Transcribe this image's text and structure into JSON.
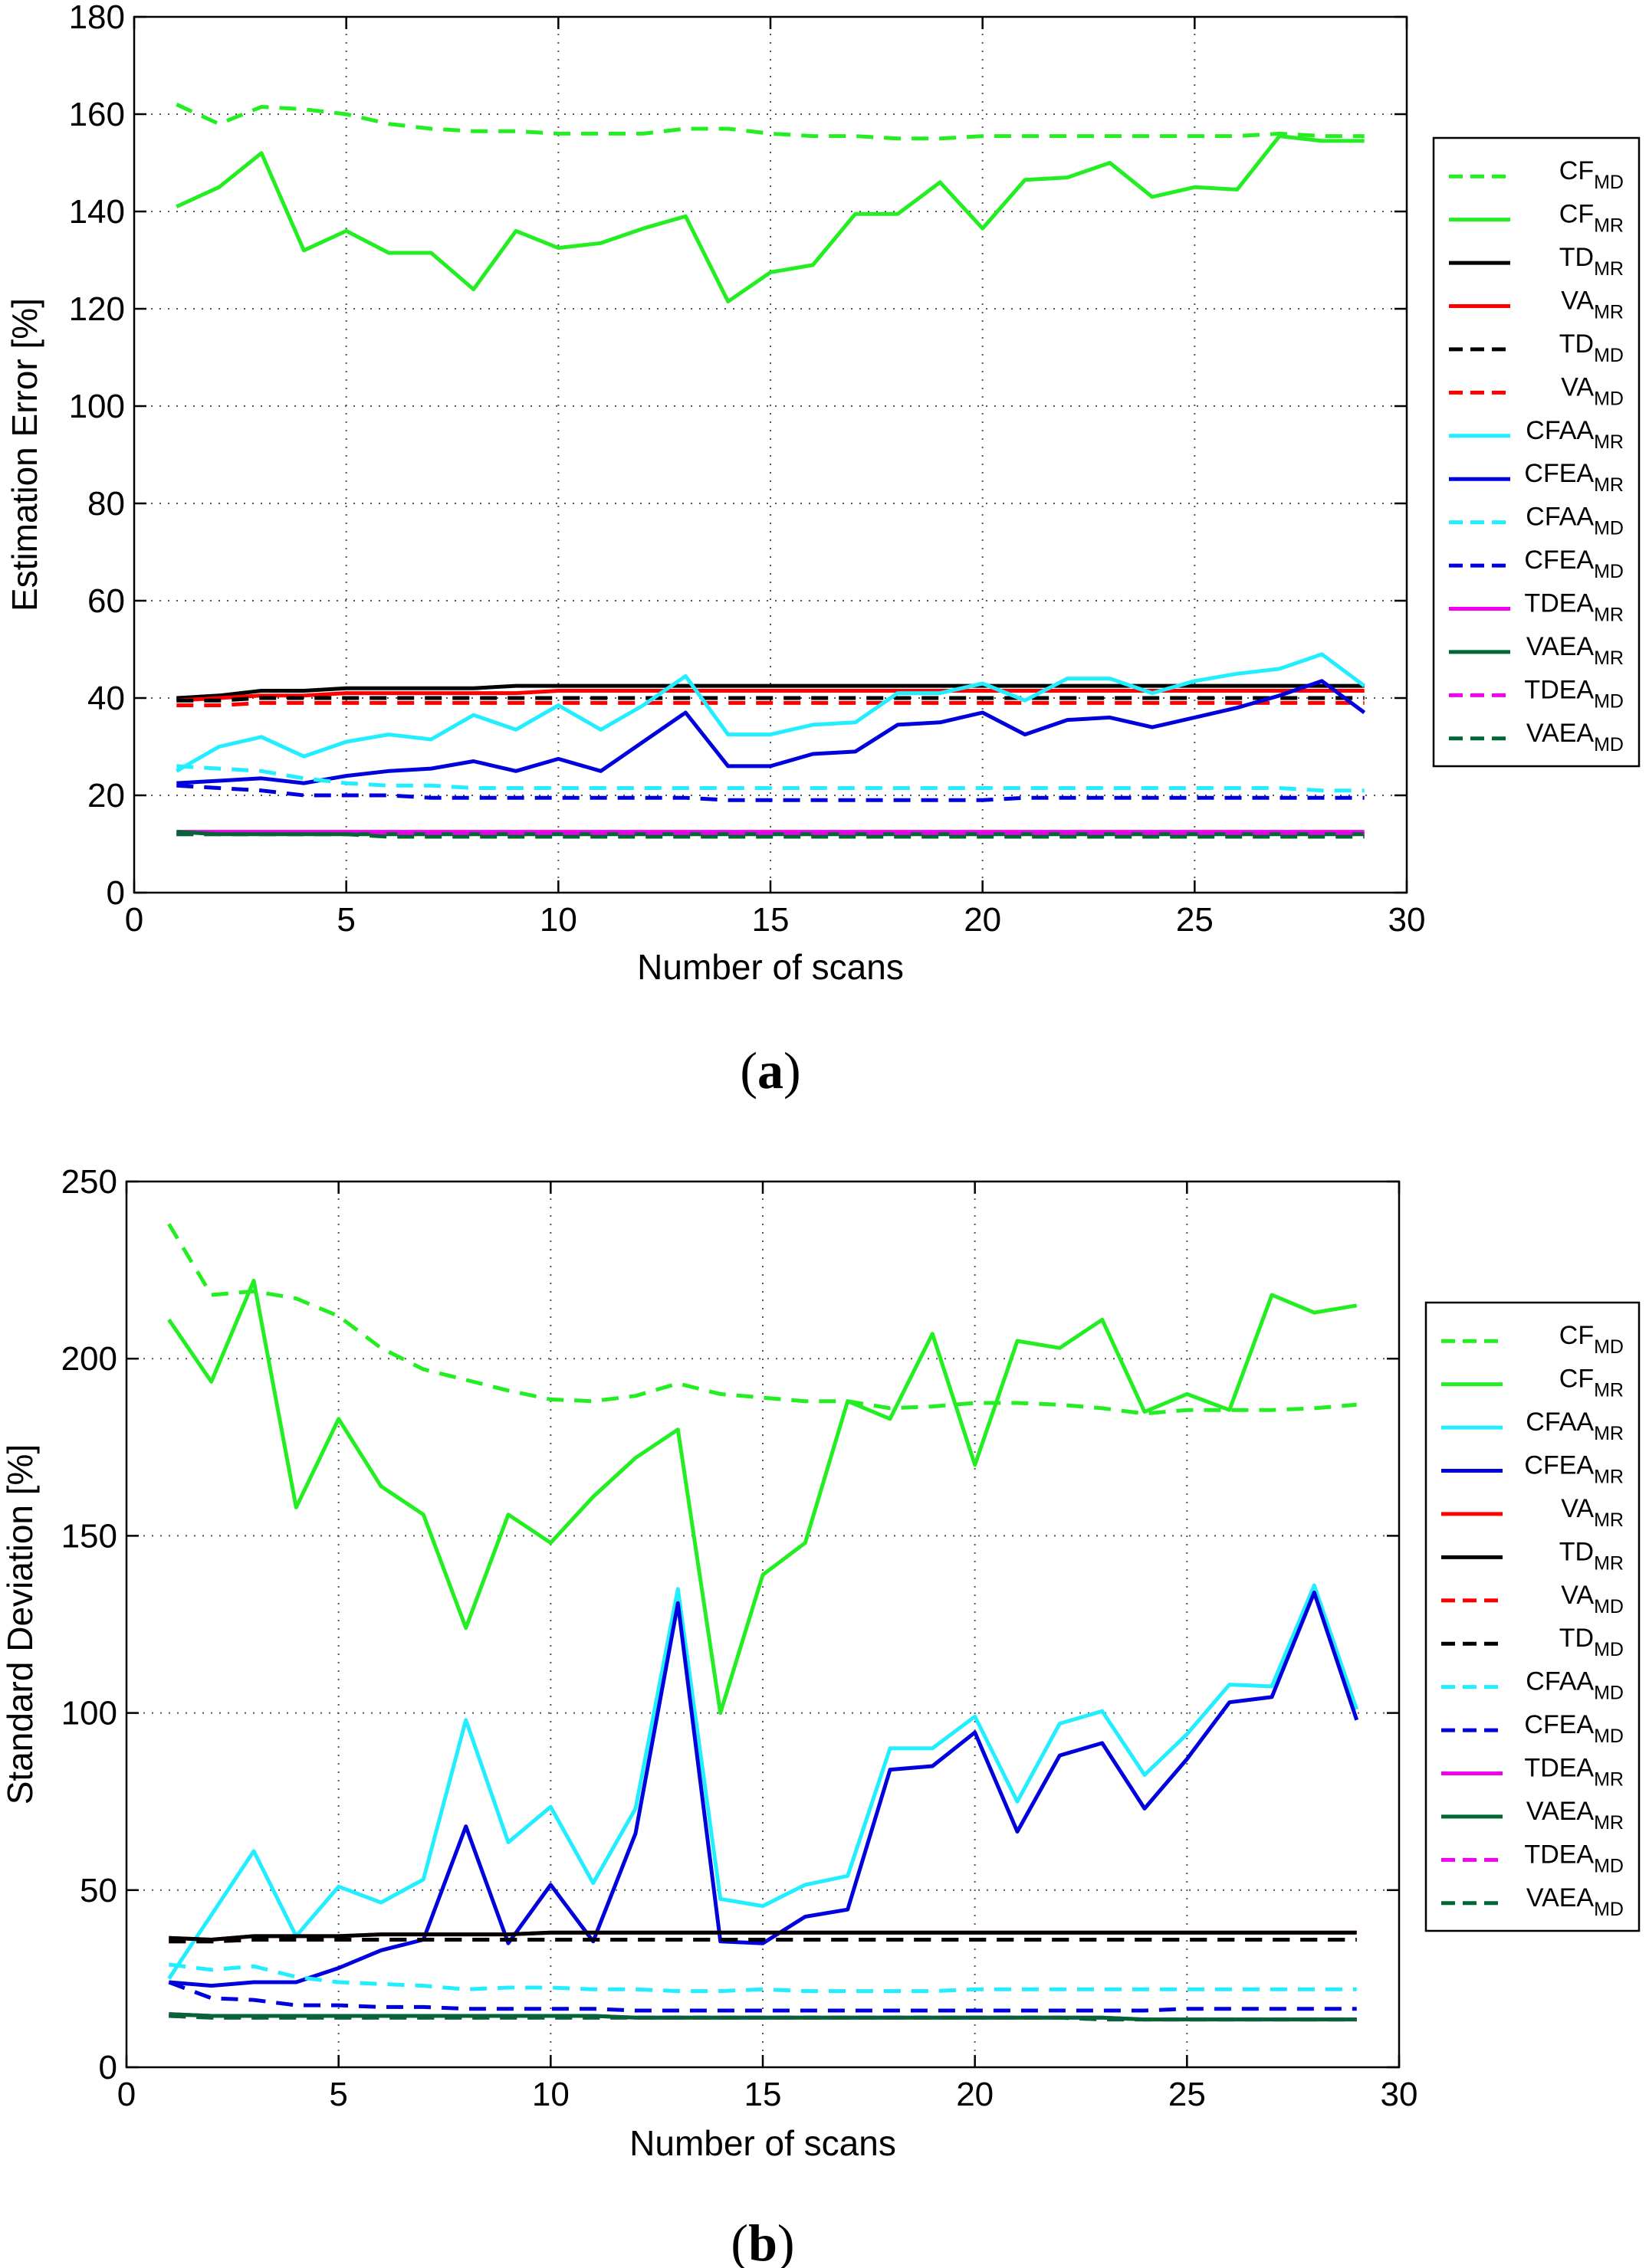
{
  "chart_data": [
    {
      "type": "line",
      "panel_label": "a",
      "xlabel": "Number of scans",
      "ylabel": "Estimation Error [%]",
      "xlim": [
        0,
        30
      ],
      "ylim": [
        0,
        180
      ],
      "xticks": [
        0,
        5,
        10,
        15,
        20,
        25,
        30
      ],
      "yticks": [
        0,
        20,
        40,
        60,
        80,
        100,
        120,
        140,
        160,
        180
      ],
      "grid": true,
      "legend_position": "right",
      "x": [
        1,
        2,
        3,
        4,
        5,
        6,
        7,
        8,
        9,
        10,
        11,
        12,
        13,
        14,
        15,
        16,
        17,
        18,
        19,
        20,
        21,
        22,
        23,
        24,
        25,
        26,
        27,
        28,
        29
      ],
      "series": [
        {
          "name": "CF",
          "sub": "MD",
          "color": "#22ee22",
          "dash": true,
          "values": [
            162,
            158,
            161.5,
            161,
            160,
            158,
            157,
            156.5,
            156.5,
            156,
            156,
            156,
            157,
            157,
            156,
            155.5,
            155.5,
            155,
            155,
            155.5,
            155.5,
            155.5,
            155.5,
            155.5,
            155.5,
            155.5,
            156,
            155.5,
            155.5
          ]
        },
        {
          "name": "CF",
          "sub": "MR",
          "color": "#22ee22",
          "dash": false,
          "values": [
            141,
            145,
            152,
            132,
            136,
            131.5,
            131.5,
            124,
            136,
            132.5,
            133.5,
            136.5,
            139,
            121.5,
            127.5,
            129,
            139.5,
            139.5,
            146,
            136.5,
            146.5,
            147,
            150,
            143,
            145,
            144.5,
            155.5,
            154.5,
            154.5
          ]
        },
        {
          "name": "TD",
          "sub": "MR",
          "color": "#000000",
          "dash": false,
          "values": [
            40,
            40.5,
            41.5,
            41.5,
            42,
            42,
            42,
            42,
            42.5,
            42.5,
            42.5,
            42.5,
            42.5,
            42.5,
            42.5,
            42.5,
            42.5,
            42.5,
            42.5,
            42.5,
            42.5,
            42.5,
            42.5,
            42.5,
            42.5,
            42.5,
            42.5,
            42.5,
            42.5
          ]
        },
        {
          "name": "VA",
          "sub": "MR",
          "color": "#ff0000",
          "dash": false,
          "values": [
            39.5,
            40,
            40.5,
            40.5,
            41,
            41,
            41,
            41,
            41,
            41.5,
            41.5,
            41.5,
            41.5,
            41.5,
            41.5,
            41.5,
            41.5,
            41.5,
            41.5,
            41.5,
            41.5,
            41.5,
            41.5,
            41.5,
            41.5,
            41.5,
            41.5,
            41.5,
            41.5
          ]
        },
        {
          "name": "TD",
          "sub": "MD",
          "color": "#000000",
          "dash": true,
          "values": [
            39.5,
            39.5,
            40,
            40,
            40,
            40,
            40,
            40,
            40,
            40,
            40,
            40,
            40,
            40,
            40,
            40,
            40,
            40,
            40,
            40,
            40,
            40,
            40,
            40,
            40,
            40,
            40,
            40,
            40
          ]
        },
        {
          "name": "VA",
          "sub": "MD",
          "color": "#ff0000",
          "dash": true,
          "values": [
            38.5,
            38.5,
            39,
            39,
            39,
            39,
            39,
            39,
            39,
            39,
            39,
            39,
            39,
            39,
            39,
            39,
            39,
            39,
            39,
            39,
            39,
            39,
            39,
            39,
            39,
            39,
            39,
            39,
            39
          ]
        },
        {
          "name": "CFAA",
          "sub": "MR",
          "color": "#22eeff",
          "dash": false,
          "values": [
            25,
            30,
            32,
            28,
            31,
            32.5,
            31.5,
            36.5,
            33.5,
            38.5,
            33.5,
            38.5,
            44.5,
            32.5,
            32.5,
            34.5,
            35,
            41,
            41,
            43,
            39.5,
            44,
            44,
            41,
            43.5,
            45,
            46,
            49,
            42.5
          ]
        },
        {
          "name": "CFEA",
          "sub": "MR",
          "color": "#0000dd",
          "dash": false,
          "values": [
            22.5,
            23,
            23.5,
            22.5,
            24,
            25,
            25.5,
            27,
            25,
            27.5,
            25,
            31,
            37,
            26,
            26,
            28.5,
            29,
            34.5,
            35,
            37,
            32.5,
            35.5,
            36,
            34,
            36,
            38,
            40.5,
            43.5,
            37
          ]
        },
        {
          "name": "CFAA",
          "sub": "MD",
          "color": "#22eeff",
          "dash": true,
          "values": [
            26,
            25.5,
            25,
            23.5,
            22.5,
            22,
            22,
            21.5,
            21.5,
            21.5,
            21.5,
            21.5,
            21.5,
            21.5,
            21.5,
            21.5,
            21.5,
            21.5,
            21.5,
            21.5,
            21.5,
            21.5,
            21.5,
            21.5,
            21.5,
            21.5,
            21.5,
            21,
            21
          ]
        },
        {
          "name": "CFEA",
          "sub": "MD",
          "color": "#0000dd",
          "dash": true,
          "values": [
            22,
            21.5,
            21,
            20,
            20,
            20,
            19.5,
            19.5,
            19.5,
            19.5,
            19.5,
            19.5,
            19.5,
            19,
            19,
            19,
            19,
            19,
            19,
            19,
            19.5,
            19.5,
            19.5,
            19.5,
            19.5,
            19.5,
            19.5,
            19.5,
            19.5
          ]
        },
        {
          "name": "TDEA",
          "sub": "MR",
          "color": "#ee00ee",
          "dash": false,
          "values": [
            12.5,
            12.5,
            12.5,
            12.5,
            12.5,
            12.5,
            12.5,
            12.5,
            12.5,
            12.5,
            12.5,
            12.5,
            12.5,
            12.5,
            12.5,
            12.5,
            12.5,
            12.5,
            12.5,
            12.5,
            12.5,
            12.5,
            12.5,
            12.5,
            12.5,
            12.5,
            12.5,
            12.5,
            12.5
          ]
        },
        {
          "name": "VAEA",
          "sub": "MR",
          "color": "#006633",
          "dash": false,
          "values": [
            12.5,
            12,
            12,
            12,
            12,
            12,
            12,
            12,
            12,
            12,
            12,
            12,
            12,
            12,
            12,
            12,
            12,
            12,
            12,
            12,
            12,
            12,
            12,
            12,
            12,
            12,
            12,
            12,
            12
          ]
        },
        {
          "name": "TDEA",
          "sub": "MD",
          "color": "#ee00ee",
          "dash": true,
          "values": [
            12,
            12,
            12,
            12,
            12,
            12,
            12,
            12,
            12,
            12,
            12,
            12,
            12,
            12,
            12,
            12,
            12,
            12,
            12,
            12,
            12,
            12,
            12,
            12,
            12,
            12,
            12,
            12,
            12
          ]
        },
        {
          "name": "VAEA",
          "sub": "MD",
          "color": "#006633",
          "dash": true,
          "values": [
            12,
            12,
            12,
            12,
            12,
            11.5,
            11.5,
            11.5,
            11.5,
            11.5,
            11.5,
            11.5,
            11.5,
            11.5,
            11.5,
            11.5,
            11.5,
            11.5,
            11.5,
            11.5,
            11.5,
            11.5,
            11.5,
            11.5,
            11.5,
            11.5,
            11.5,
            11.5,
            11.5
          ]
        }
      ]
    },
    {
      "type": "line",
      "panel_label": "b",
      "xlabel": "Number of scans",
      "ylabel": "Standard Deviation [%]",
      "xlim": [
        0,
        30
      ],
      "ylim": [
        0,
        250
      ],
      "xticks": [
        0,
        5,
        10,
        15,
        20,
        25,
        30
      ],
      "yticks": [
        0,
        50,
        100,
        150,
        200,
        250
      ],
      "grid": true,
      "legend_position": "right",
      "x": [
        1,
        2,
        3,
        4,
        5,
        6,
        7,
        8,
        9,
        10,
        11,
        12,
        13,
        14,
        15,
        16,
        17,
        18,
        19,
        20,
        21,
        22,
        23,
        24,
        25,
        26,
        27,
        28,
        29
      ],
      "series": [
        {
          "name": "CF",
          "sub": "MD",
          "color": "#22ee22",
          "dash": true,
          "values": [
            238,
            218,
            219,
            217,
            212,
            203,
            197,
            194,
            191,
            188.5,
            188,
            189.5,
            193,
            190,
            189,
            188,
            188,
            186,
            186.5,
            187.5,
            187.5,
            187,
            186,
            184.5,
            185.5,
            185.5,
            185.5,
            186,
            187
          ]
        },
        {
          "name": "CF",
          "sub": "MR",
          "color": "#22ee22",
          "dash": false,
          "values": [
            211,
            193.5,
            222,
            158,
            183,
            164,
            156,
            124,
            156,
            148,
            161,
            172,
            180,
            100,
            139,
            148,
            188,
            183,
            207,
            170,
            205,
            203,
            211,
            185,
            190,
            185.5,
            218,
            213,
            215
          ]
        },
        {
          "name": "CFAA",
          "sub": "MR",
          "color": "#22eeff",
          "dash": false,
          "values": [
            25,
            43,
            61,
            37,
            51,
            46.5,
            53,
            98,
            63.5,
            73.5,
            52,
            73,
            135,
            47.5,
            45.5,
            51.5,
            54,
            90,
            90,
            99,
            75,
            97,
            100.5,
            82.5,
            94,
            108,
            107.5,
            136,
            101
          ]
        },
        {
          "name": "CFEA",
          "sub": "MR",
          "color": "#0000dd",
          "dash": false,
          "values": [
            24,
            23,
            24,
            24,
            28,
            33,
            36,
            68,
            35,
            51.5,
            35.5,
            66,
            131,
            35.5,
            35,
            42.5,
            44.5,
            84,
            85,
            94.5,
            66.5,
            88,
            91.5,
            73,
            87,
            103,
            104.5,
            134,
            98
          ]
        },
        {
          "name": "VA",
          "sub": "MR",
          "color": "#ff0000",
          "dash": false,
          "values": [
            36.5,
            36,
            37,
            37,
            37,
            37.5,
            37.5,
            37.5,
            37.5,
            38,
            38,
            38,
            38,
            38,
            38,
            38,
            38,
            38,
            38,
            38,
            38,
            38,
            38,
            38,
            38,
            38,
            38,
            38,
            38
          ]
        },
        {
          "name": "TD",
          "sub": "MR",
          "color": "#000000",
          "dash": false,
          "values": [
            36.5,
            36,
            37,
            37,
            37,
            37.5,
            37.5,
            37.5,
            37.5,
            38,
            38,
            38,
            38,
            38,
            38,
            38,
            38,
            38,
            38,
            38,
            38,
            38,
            38,
            38,
            38,
            38,
            38,
            38,
            38
          ]
        },
        {
          "name": "VA",
          "sub": "MD",
          "color": "#ff0000",
          "dash": true,
          "values": [
            35.5,
            35.5,
            36,
            36,
            36,
            36,
            36,
            36,
            36,
            36,
            36,
            36,
            36,
            36,
            36,
            36,
            36,
            36,
            36,
            36,
            36,
            36,
            36,
            36,
            36,
            36,
            36,
            36,
            36
          ]
        },
        {
          "name": "TD",
          "sub": "MD",
          "color": "#000000",
          "dash": true,
          "values": [
            35.5,
            35.5,
            36,
            36,
            36,
            36,
            36,
            36,
            36,
            36,
            36,
            36,
            36,
            36,
            36,
            36,
            36,
            36,
            36,
            36,
            36,
            36,
            36,
            36,
            36,
            36,
            36,
            36,
            36
          ]
        },
        {
          "name": "CFAA",
          "sub": "MD",
          "color": "#22eeff",
          "dash": true,
          "values": [
            29,
            27.5,
            28.5,
            25.5,
            24,
            23.5,
            23,
            22,
            22.5,
            22.5,
            22,
            22,
            21.5,
            21.5,
            22,
            21.5,
            21.5,
            21.5,
            21.5,
            22,
            22,
            22,
            22,
            22,
            22,
            22,
            22,
            22,
            22
          ]
        },
        {
          "name": "CFEA",
          "sub": "MD",
          "color": "#0000dd",
          "dash": true,
          "values": [
            24,
            19.5,
            19,
            17.5,
            17.5,
            17,
            17,
            16.5,
            16.5,
            16.5,
            16.5,
            16,
            16,
            16,
            16,
            16,
            16,
            16,
            16,
            16,
            16,
            16,
            16,
            16,
            16.5,
            16.5,
            16.5,
            16.5,
            16.5
          ]
        },
        {
          "name": "TDEA",
          "sub": "MR",
          "color": "#ee00ee",
          "dash": false,
          "values": [
            15,
            14.5,
            14.5,
            14.5,
            14.5,
            14.5,
            14.5,
            14.5,
            14.5,
            14.5,
            14.5,
            14,
            14,
            14,
            14,
            14,
            14,
            14,
            14,
            14,
            14,
            14,
            14,
            13.5,
            13.5,
            13.5,
            13.5,
            13.5,
            13.5
          ]
        },
        {
          "name": "VAEA",
          "sub": "MR",
          "color": "#006633",
          "dash": false,
          "values": [
            15,
            14.5,
            14.5,
            14.5,
            14.5,
            14.5,
            14.5,
            14.5,
            14.5,
            14.5,
            14.5,
            14,
            14,
            14,
            14,
            14,
            14,
            14,
            14,
            14,
            14,
            14,
            14,
            13.5,
            13.5,
            13.5,
            13.5,
            13.5,
            13.5
          ]
        },
        {
          "name": "TDEA",
          "sub": "MD",
          "color": "#ee00ee",
          "dash": true,
          "values": [
            14.5,
            14,
            14,
            14,
            14,
            14,
            14,
            14,
            14,
            14,
            14,
            14,
            14,
            14,
            14,
            14,
            14,
            14,
            14,
            14,
            14,
            14,
            13.5,
            13.5,
            13.5,
            13.5,
            13.5,
            13.5,
            13.5
          ]
        },
        {
          "name": "VAEA",
          "sub": "MD",
          "color": "#006633",
          "dash": true,
          "values": [
            14.5,
            14,
            14,
            14,
            14,
            14,
            14,
            14,
            14,
            14,
            14,
            14,
            14,
            14,
            14,
            14,
            14,
            14,
            14,
            14,
            14,
            14,
            13.5,
            13.5,
            13.5,
            13.5,
            13.5,
            13.5,
            13.5
          ]
        }
      ]
    }
  ]
}
